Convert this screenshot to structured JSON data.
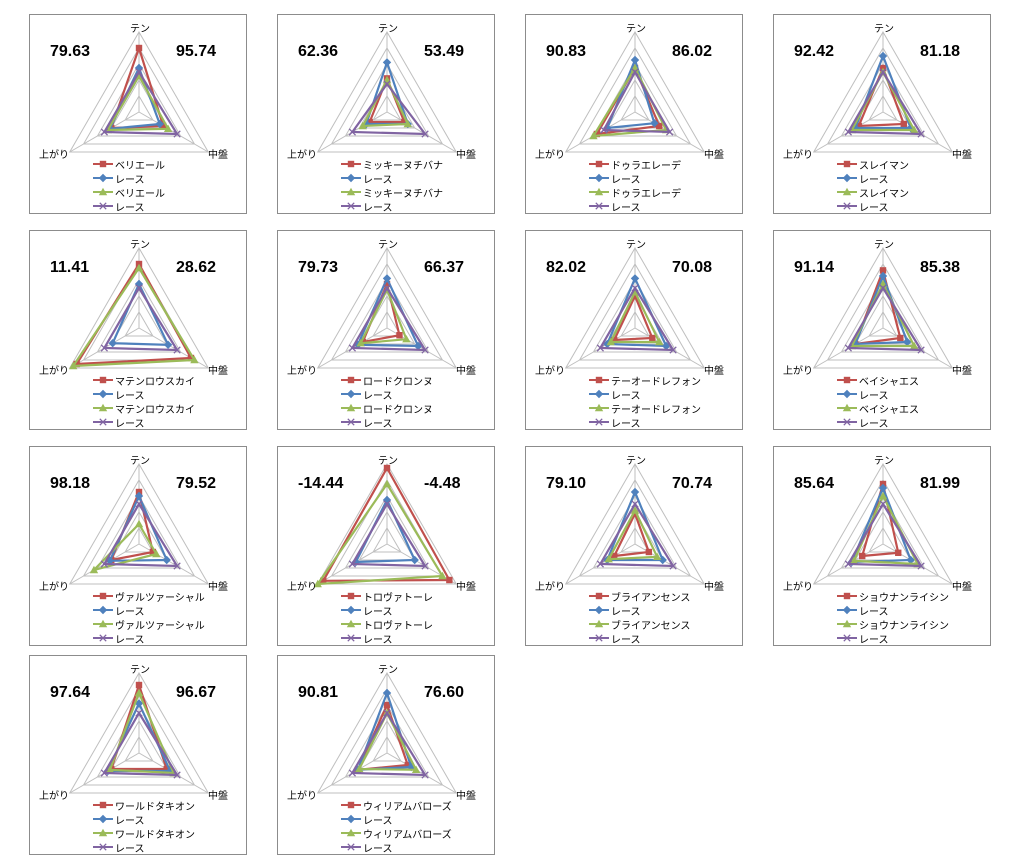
{
  "axes": [
    "テン",
    "中盤",
    "上がり"
  ],
  "grid_levels": [
    0.2,
    0.4,
    0.6,
    0.8,
    1.0
  ],
  "series_colors": [
    "#C0504D",
    "#4F81BD",
    "#9BBB59",
    "#8064A2"
  ],
  "chart_data": [
    {
      "type": "radar",
      "left_score": "79.63",
      "right_score": "95.74",
      "legend": [
        "ベリエール",
        "レース",
        "ベリエール",
        "レース"
      ],
      "series": [
        {
          "values": [
            0.8,
            0.35,
            0.4
          ]
        },
        {
          "values": [
            0.55,
            0.3,
            0.42
          ]
        },
        {
          "values": [
            0.45,
            0.42,
            0.45
          ]
        },
        {
          "values": [
            0.5,
            0.55,
            0.5
          ]
        }
      ]
    },
    {
      "type": "radar",
      "left_score": "62.36",
      "right_score": "53.49",
      "legend": [
        "ミッキーヌチバナ",
        "レース",
        "ミッキーヌチバナ",
        "レース"
      ],
      "series": [
        {
          "values": [
            0.42,
            0.25,
            0.25
          ]
        },
        {
          "values": [
            0.62,
            0.3,
            0.3
          ]
        },
        {
          "values": [
            0.4,
            0.3,
            0.35
          ]
        },
        {
          "values": [
            0.35,
            0.55,
            0.5
          ]
        }
      ]
    },
    {
      "type": "radar",
      "left_score": "90.83",
      "right_score": "86.02",
      "legend": [
        "ドゥラエレーデ",
        "レース",
        "ドゥラエレーデ",
        "レース"
      ],
      "series": [
        {
          "values": [
            0.55,
            0.35,
            0.55
          ]
        },
        {
          "values": [
            0.65,
            0.28,
            0.4
          ]
        },
        {
          "values": [
            0.55,
            0.45,
            0.6
          ]
        },
        {
          "values": [
            0.5,
            0.5,
            0.45
          ]
        }
      ]
    },
    {
      "type": "radar",
      "left_score": "92.42",
      "right_score": "81.18",
      "legend": [
        "スレイマン",
        "レース",
        "スレイマン",
        "レース"
      ],
      "series": [
        {
          "values": [
            0.55,
            0.3,
            0.35
          ]
        },
        {
          "values": [
            0.7,
            0.4,
            0.4
          ]
        },
        {
          "values": [
            0.5,
            0.45,
            0.45
          ]
        },
        {
          "values": [
            0.5,
            0.55,
            0.5
          ]
        }
      ]
    },
    {
      "type": "radar",
      "left_score": "11.41",
      "right_score": "28.62",
      "legend": [
        "マテンロウスカイ",
        "レース",
        "マテンロウスカイ",
        "レース"
      ],
      "series": [
        {
          "values": [
            0.8,
            0.75,
            0.9
          ]
        },
        {
          "values": [
            0.55,
            0.42,
            0.38
          ]
        },
        {
          "values": [
            0.75,
            0.8,
            0.95
          ]
        },
        {
          "values": [
            0.5,
            0.55,
            0.5
          ]
        }
      ]
    },
    {
      "type": "radar",
      "left_score": "79.73",
      "right_score": "66.37",
      "legend": [
        "ロードクロンヌ",
        "レース",
        "ロードクロンヌ",
        "レース"
      ],
      "series": [
        {
          "values": [
            0.55,
            0.18,
            0.35
          ]
        },
        {
          "values": [
            0.62,
            0.45,
            0.42
          ]
        },
        {
          "values": [
            0.48,
            0.28,
            0.38
          ]
        },
        {
          "values": [
            0.5,
            0.55,
            0.5
          ]
        }
      ]
    },
    {
      "type": "radar",
      "left_score": "82.02",
      "right_score": "70.08",
      "legend": [
        "テーオードレフォン",
        "レース",
        "テーオードレフォン",
        "レース"
      ],
      "series": [
        {
          "values": [
            0.4,
            0.25,
            0.3
          ]
        },
        {
          "values": [
            0.62,
            0.45,
            0.4
          ]
        },
        {
          "values": [
            0.45,
            0.35,
            0.35
          ]
        },
        {
          "values": [
            0.5,
            0.55,
            0.5
          ]
        }
      ]
    },
    {
      "type": "radar",
      "left_score": "91.14",
      "right_score": "85.38",
      "legend": [
        "ベイシャエス",
        "レース",
        "ベイシャエス",
        "レース"
      ],
      "series": [
        {
          "values": [
            0.72,
            0.25,
            0.4
          ]
        },
        {
          "values": [
            0.65,
            0.35,
            0.4
          ]
        },
        {
          "values": [
            0.55,
            0.45,
            0.45
          ]
        },
        {
          "values": [
            0.5,
            0.55,
            0.5
          ]
        }
      ]
    },
    {
      "type": "radar",
      "left_score": "98.18",
      "right_score": "79.52",
      "legend": [
        "ヴァルツァーシャル",
        "レース",
        "ヴァルツァーシャル",
        "レース"
      ],
      "series": [
        {
          "values": [
            0.65,
            0.2,
            0.4
          ]
        },
        {
          "values": [
            0.6,
            0.4,
            0.42
          ]
        },
        {
          "values": [
            0.25,
            0.25,
            0.65
          ]
        },
        {
          "values": [
            0.5,
            0.55,
            0.5
          ]
        }
      ]
    },
    {
      "type": "radar",
      "left_score": "-14.44",
      "right_score": "-4.48",
      "legend": [
        "トロヴァトーレ",
        "レース",
        "トロヴァトーレ",
        "レース"
      ],
      "series": [
        {
          "values": [
            0.95,
            0.9,
            0.92
          ]
        },
        {
          "values": [
            0.55,
            0.4,
            0.45
          ]
        },
        {
          "values": [
            0.75,
            0.8,
            1.0
          ]
        },
        {
          "values": [
            0.5,
            0.55,
            0.5
          ]
        }
      ]
    },
    {
      "type": "radar",
      "left_score": "79.10",
      "right_score": "70.74",
      "legend": [
        "ブライアンセンス",
        "レース",
        "ブライアンセンス",
        "レース"
      ],
      "series": [
        {
          "values": [
            0.38,
            0.2,
            0.3
          ]
        },
        {
          "values": [
            0.65,
            0.4,
            0.4
          ]
        },
        {
          "values": [
            0.42,
            0.32,
            0.38
          ]
        },
        {
          "values": [
            0.5,
            0.55,
            0.5
          ]
        }
      ]
    },
    {
      "type": "radar",
      "left_score": "85.64",
      "right_score": "81.99",
      "legend": [
        "ショウナンライシン",
        "レース",
        "ショウナンライシン",
        "レース"
      ],
      "series": [
        {
          "values": [
            0.75,
            0.22,
            0.3
          ]
        },
        {
          "values": [
            0.7,
            0.4,
            0.45
          ]
        },
        {
          "values": [
            0.6,
            0.5,
            0.42
          ]
        },
        {
          "values": [
            0.5,
            0.55,
            0.5
          ]
        }
      ]
    },
    {
      "type": "radar",
      "left_score": "97.64",
      "right_score": "96.67",
      "legend": [
        "ワールドタキオン",
        "レース",
        "ワールドタキオン",
        "レース"
      ],
      "series": [
        {
          "values": [
            0.85,
            0.4,
            0.4
          ]
        },
        {
          "values": [
            0.62,
            0.45,
            0.45
          ]
        },
        {
          "values": [
            0.75,
            0.5,
            0.42
          ]
        },
        {
          "values": [
            0.5,
            0.55,
            0.5
          ]
        }
      ]
    },
    {
      "type": "radar",
      "left_score": "90.81",
      "right_score": "76.60",
      "legend": [
        "ウィリアムバローズ",
        "レース",
        "ウィリアムバローズ",
        "レース"
      ],
      "series": [
        {
          "values": [
            0.6,
            0.3,
            0.42
          ]
        },
        {
          "values": [
            0.75,
            0.35,
            0.42
          ]
        },
        {
          "values": [
            0.5,
            0.42,
            0.4
          ]
        },
        {
          "values": [
            0.5,
            0.55,
            0.5
          ]
        }
      ]
    }
  ]
}
